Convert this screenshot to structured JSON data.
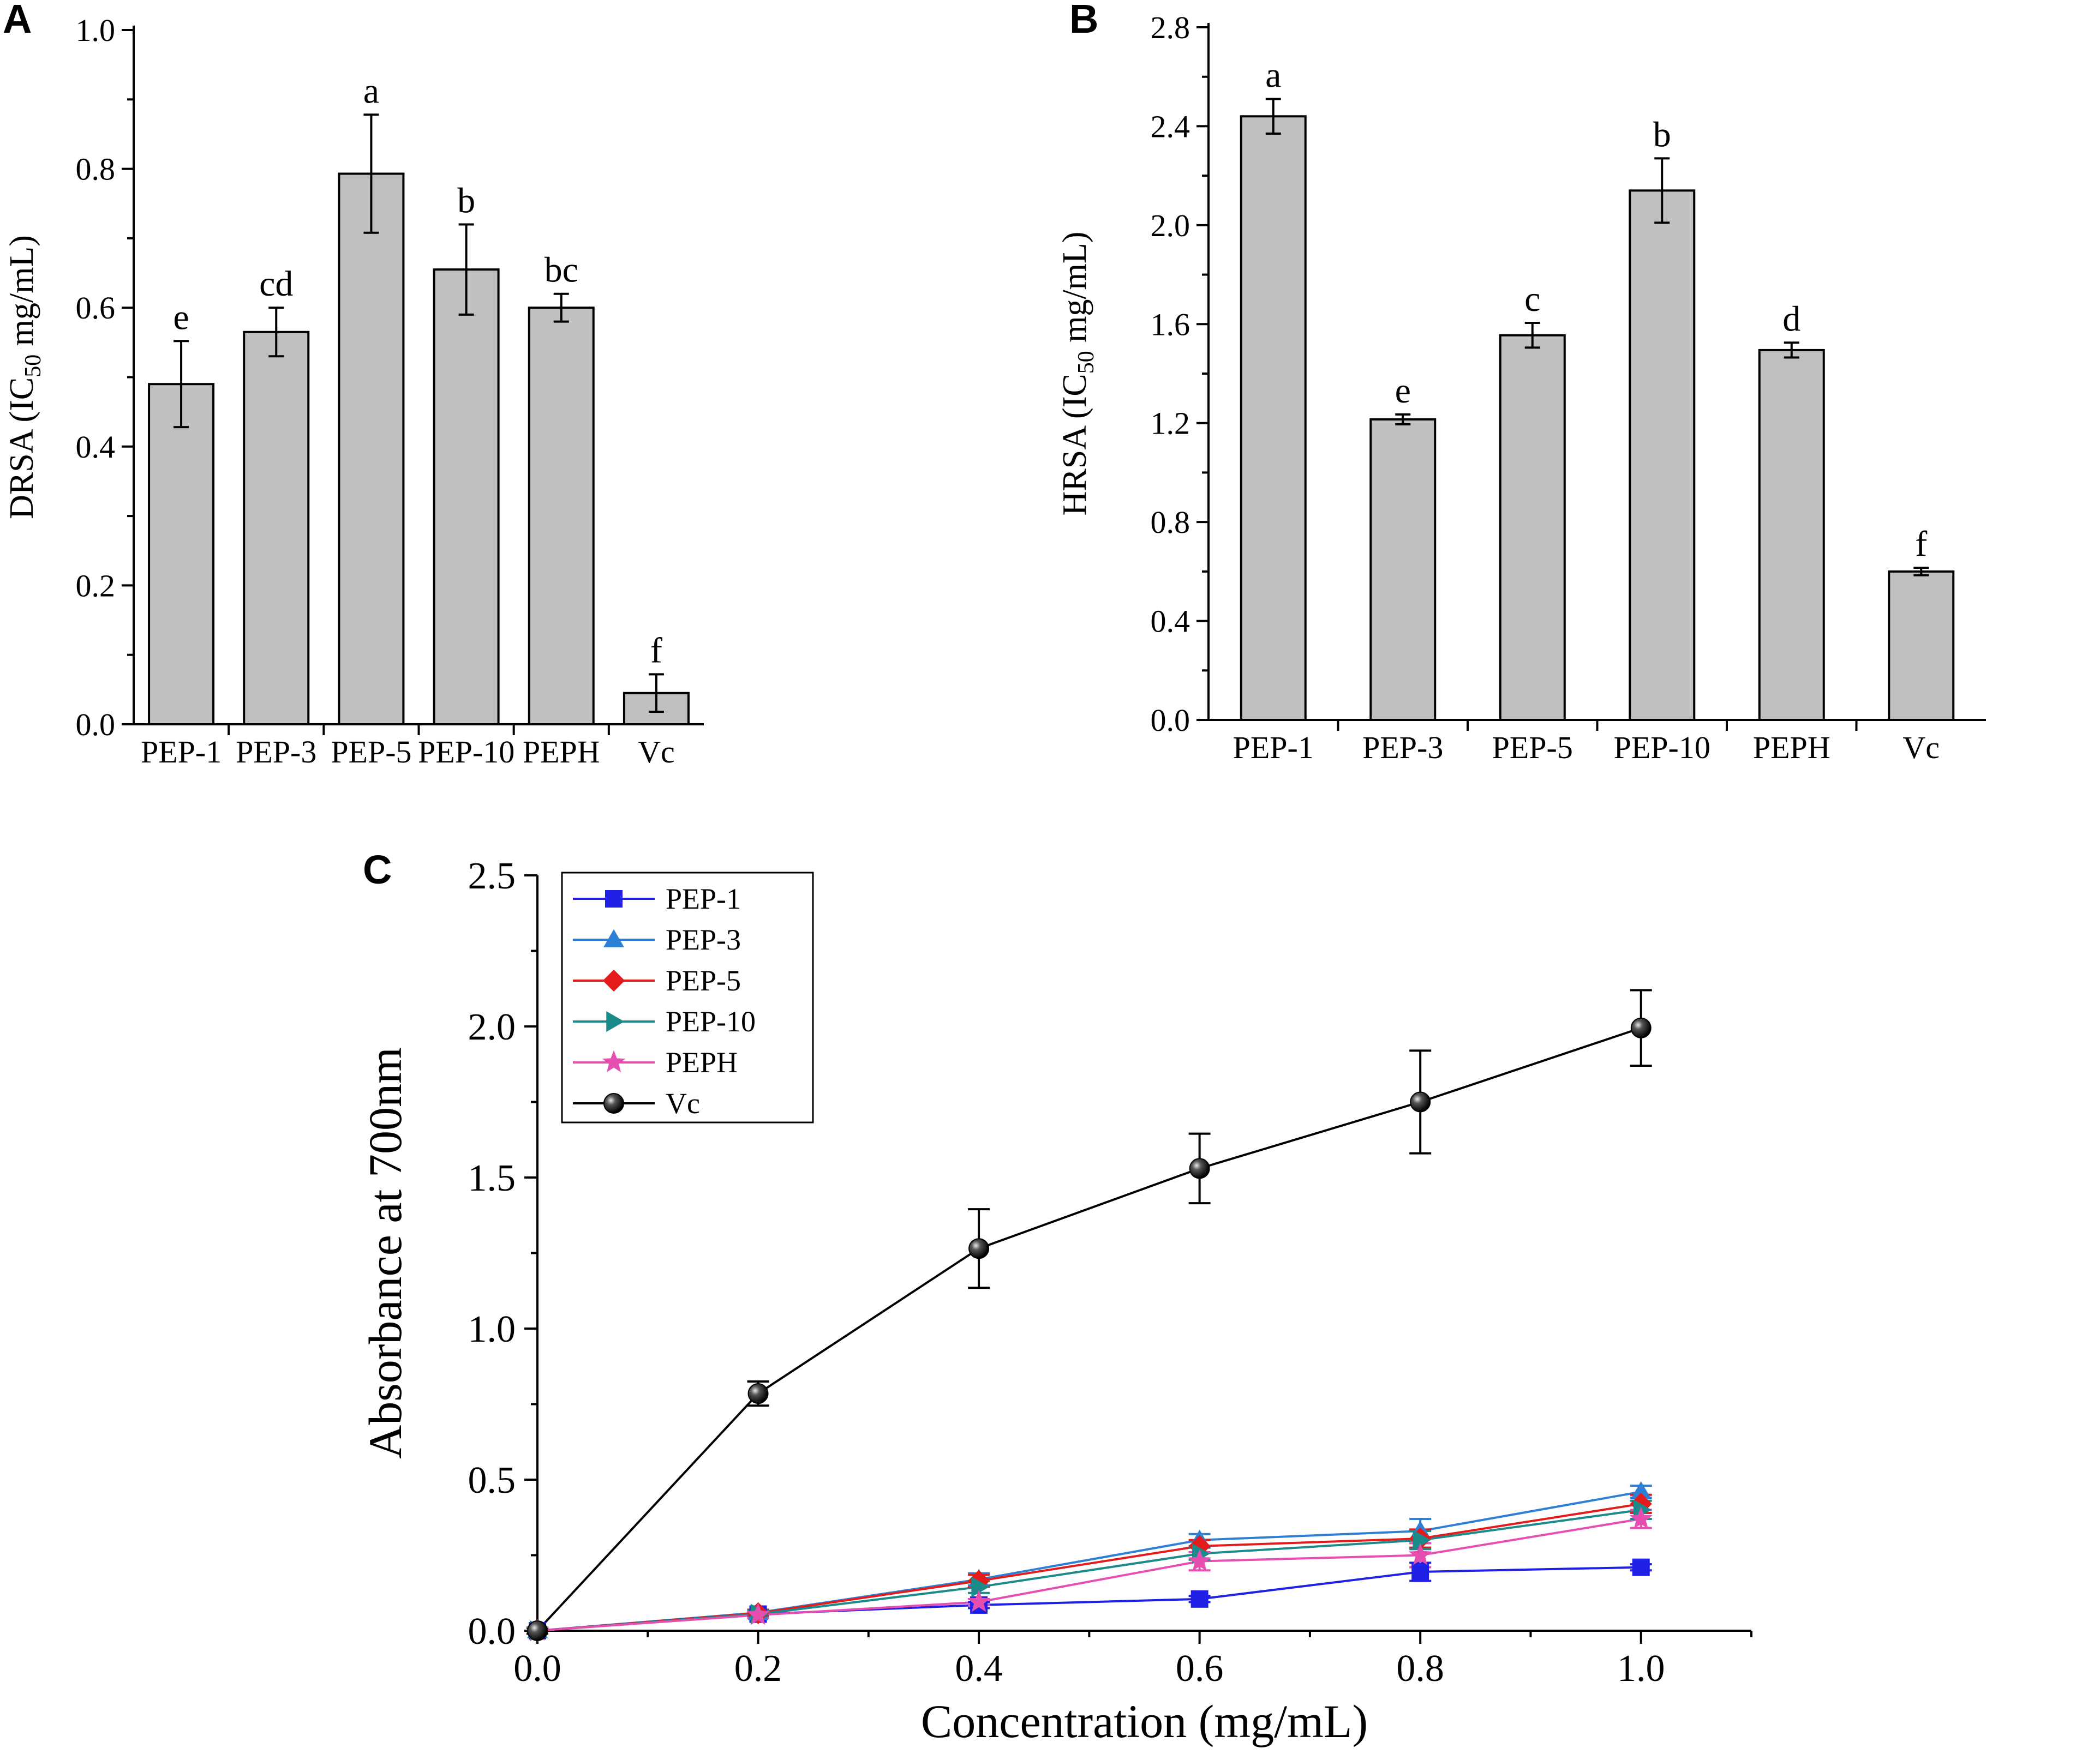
{
  "chart_data": [
    {
      "panel": "A",
      "type": "bar",
      "ylabel": "DRSA (IC",
      "ylabel_sub": "50",
      "ylabel_tail": " mg/mL)",
      "categories": [
        "PEP-1",
        "PEP-3",
        "PEP-5",
        "PEP-10",
        "PEPH",
        "Vc"
      ],
      "values": [
        0.49,
        0.565,
        0.793,
        0.655,
        0.6,
        0.045
      ],
      "errors": [
        0.062,
        0.035,
        0.085,
        0.065,
        0.02,
        0.027
      ],
      "letters": [
        "e",
        "cd",
        "a",
        "b",
        "bc",
        "f"
      ],
      "ylim": [
        0,
        1.0
      ],
      "yticks": [
        0.0,
        0.2,
        0.4,
        0.6,
        0.8,
        1.0
      ],
      "ytick_labels": [
        "0.0",
        "0.2",
        "0.4",
        "0.6",
        "0.8",
        "1.0"
      ]
    },
    {
      "panel": "B",
      "type": "bar",
      "ylabel": "HRSA (IC",
      "ylabel_sub": "50",
      "ylabel_tail": " mg/mL)",
      "categories": [
        "PEP-1",
        "PEP-3",
        "PEP-5",
        "PEP-10",
        "PEPH",
        "Vc"
      ],
      "values": [
        2.44,
        1.215,
        1.555,
        2.14,
        1.495,
        0.6
      ],
      "errors": [
        0.07,
        0.02,
        0.05,
        0.13,
        0.03,
        0.015
      ],
      "letters": [
        "a",
        "e",
        "c",
        "b",
        "d",
        "f"
      ],
      "ylim": [
        0,
        2.8
      ],
      "yticks": [
        0.0,
        0.4,
        0.8,
        1.2,
        1.6,
        2.0,
        2.4,
        2.8
      ],
      "ytick_labels": [
        "0.0",
        "0.4",
        "0.8",
        "1.2",
        "1.6",
        "2.0",
        "2.4",
        "2.8"
      ]
    },
    {
      "panel": "C",
      "type": "line",
      "xlabel": "Concentration (mg/mL)",
      "ylabel": "Absorbance at 700nm",
      "x": [
        0.0,
        0.2,
        0.4,
        0.6,
        0.8,
        1.0
      ],
      "xlim": [
        0.0,
        1.1
      ],
      "ylim": [
        0.0,
        2.5
      ],
      "xticks": [
        0.0,
        0.2,
        0.4,
        0.6,
        0.8,
        1.0
      ],
      "xtick_labels": [
        "0.0",
        "0.2",
        "0.4",
        "0.6",
        "0.8",
        "1.0"
      ],
      "yticks": [
        0.0,
        0.5,
        1.0,
        1.5,
        2.0,
        2.5
      ],
      "ytick_labels": [
        "0.0",
        "0.5",
        "1.0",
        "1.5",
        "2.0",
        "2.5"
      ],
      "legend_position": "top-left",
      "series": [
        {
          "name": "PEP-1",
          "color": "#1f1fe6",
          "marker": "square",
          "values": [
            0.0,
            0.055,
            0.085,
            0.105,
            0.195,
            0.21
          ],
          "errors": [
            0.01,
            0.01,
            0.01,
            0.01,
            0.03,
            0.01
          ]
        },
        {
          "name": "PEP-3",
          "color": "#2e7fd6",
          "marker": "triangle-up",
          "values": [
            0.0,
            0.06,
            0.17,
            0.3,
            0.33,
            0.46
          ],
          "errors": [
            0.01,
            0.01,
            0.02,
            0.02,
            0.04,
            0.02
          ]
        },
        {
          "name": "PEP-5",
          "color": "#e31b1b",
          "marker": "diamond",
          "values": [
            0.0,
            0.058,
            0.165,
            0.28,
            0.305,
            0.42
          ],
          "errors": [
            0.01,
            0.01,
            0.02,
            0.02,
            0.03,
            0.03
          ]
        },
        {
          "name": "PEP-10",
          "color": "#1a8a8a",
          "marker": "triangle-right",
          "values": [
            0.0,
            0.055,
            0.145,
            0.255,
            0.3,
            0.4
          ],
          "errors": [
            0.01,
            0.01,
            0.02,
            0.02,
            0.03,
            0.03
          ]
        },
        {
          "name": "PEPH",
          "color": "#e64fb0",
          "marker": "star",
          "values": [
            0.0,
            0.052,
            0.095,
            0.23,
            0.25,
            0.37
          ],
          "errors": [
            0.01,
            0.01,
            0.01,
            0.03,
            0.04,
            0.03
          ]
        },
        {
          "name": "Vc",
          "color": "#000000",
          "marker": "sphere",
          "values": [
            0.0,
            0.785,
            1.265,
            1.53,
            1.75,
            1.995
          ],
          "errors": [
            0.01,
            0.04,
            0.13,
            0.115,
            0.17,
            0.125
          ]
        }
      ]
    }
  ]
}
